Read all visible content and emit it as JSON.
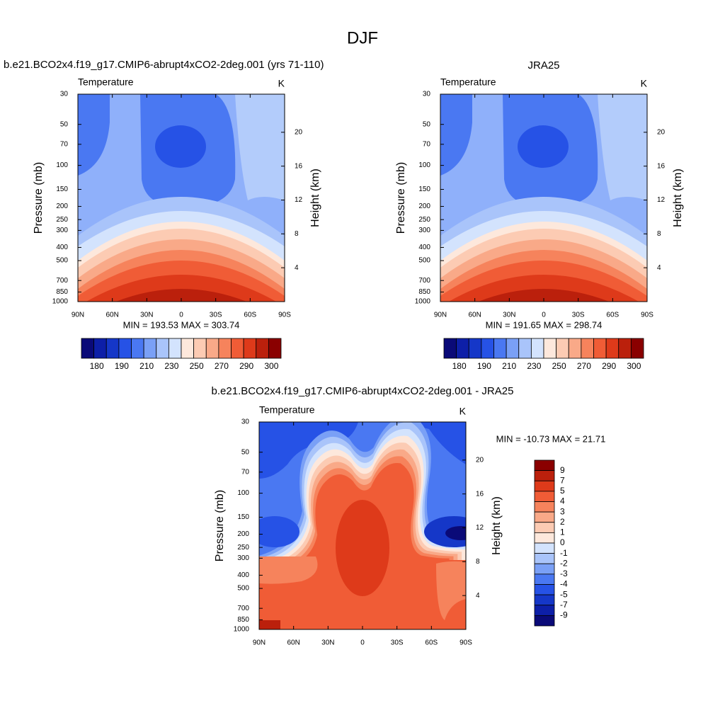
{
  "title": "DJF",
  "chart_data": [
    {
      "type": "contour",
      "title": "b.e21.BCO2x4.f19_g17.CMIP6-abrupt4xCO2-2deg.001 (yrs 71-110)",
      "left_label": "Temperature",
      "right_label": "K",
      "ylabel": "Pressure (mb)",
      "y2label": "Height (km)",
      "stats": "MIN = 193.53  MAX = 303.74",
      "xlim": [
        90,
        -90
      ],
      "xticks": [
        {
          "value": 90,
          "label": "90N"
        },
        {
          "value": 60,
          "label": "60N"
        },
        {
          "value": 30,
          "label": "30N"
        },
        0,
        {
          "value": -30,
          "label": "30S"
        },
        {
          "value": -60,
          "label": "60S"
        },
        {
          "value": -90,
          "label": "90S"
        }
      ],
      "ylim": [
        1000,
        30
      ],
      "ylog": true,
      "yticks": [
        30,
        50,
        70,
        100,
        150,
        200,
        250,
        300,
        400,
        500,
        700,
        850,
        1000
      ],
      "y2lim": [
        0,
        24.5
      ],
      "y2ticks": [
        4,
        8,
        12,
        16,
        20
      ],
      "colorbar": {
        "orientation": "horizontal",
        "colors": [
          "#0a0a78",
          "#0d1fa8",
          "#1537c8",
          "#2652e6",
          "#4a78f2",
          "#7aa0f6",
          "#a9c4fa",
          "#d3e3fd",
          "#fde8dc",
          "#fccbb3",
          "#f9a988",
          "#f6835c",
          "#f05c36",
          "#de3a1a",
          "#bb200c",
          "#8a0000"
        ],
        "ticks": [
          180,
          190,
          210,
          230,
          250,
          270,
          290,
          300
        ]
      }
    },
    {
      "type": "contour",
      "title": "JRA25",
      "left_label": "Temperature",
      "right_label": "K",
      "ylabel": "Pressure (mb)",
      "y2label": "Height (km)",
      "stats": "MIN = 191.65  MAX = 298.74",
      "xlim": [
        90,
        -90
      ],
      "xticks": [
        {
          "value": 90,
          "label": "90N"
        },
        {
          "value": 60,
          "label": "60N"
        },
        {
          "value": 30,
          "label": "30N"
        },
        0,
        {
          "value": -30,
          "label": "30S"
        },
        {
          "value": -60,
          "label": "60S"
        },
        {
          "value": -90,
          "label": "90S"
        }
      ],
      "ylim": [
        1000,
        30
      ],
      "ylog": true,
      "yticks": [
        30,
        50,
        70,
        100,
        150,
        200,
        250,
        300,
        400,
        500,
        700,
        850,
        1000
      ],
      "y2lim": [
        0,
        24.5
      ],
      "y2ticks": [
        4,
        8,
        12,
        16,
        20
      ],
      "colorbar": {
        "orientation": "horizontal",
        "colors": [
          "#0a0a78",
          "#0d1fa8",
          "#1537c8",
          "#2652e6",
          "#4a78f2",
          "#7aa0f6",
          "#a9c4fa",
          "#d3e3fd",
          "#fde8dc",
          "#fccbb3",
          "#f9a988",
          "#f6835c",
          "#f05c36",
          "#de3a1a",
          "#bb200c",
          "#8a0000"
        ],
        "ticks": [
          180,
          190,
          210,
          230,
          250,
          270,
          290,
          300
        ]
      }
    },
    {
      "type": "contour",
      "title": "b.e21.BCO2x4.f19_g17.CMIP6-abrupt4xCO2-2deg.001 - JRA25",
      "left_label": "Temperature",
      "right_label": "K",
      "ylabel": "Pressure (mb)",
      "y2label": "Height (km)",
      "stats": "MIN = -10.73  MAX =  21.71",
      "xlim": [
        90,
        -90
      ],
      "xticks": [
        {
          "value": 90,
          "label": "90N"
        },
        {
          "value": 60,
          "label": "60N"
        },
        {
          "value": 30,
          "label": "30N"
        },
        0,
        {
          "value": -30,
          "label": "30S"
        },
        {
          "value": -60,
          "label": "60S"
        },
        {
          "value": -90,
          "label": "90S"
        }
      ],
      "ylim": [
        1000,
        30
      ],
      "ylog": true,
      "yticks": [
        30,
        50,
        70,
        100,
        150,
        200,
        250,
        300,
        400,
        500,
        700,
        850,
        1000
      ],
      "y2lim": [
        0,
        24.5
      ],
      "y2ticks": [
        4,
        8,
        12,
        16,
        20
      ],
      "colorbar": {
        "orientation": "vertical",
        "colors": [
          "#8a0000",
          "#bb200c",
          "#de3a1a",
          "#f05c36",
          "#f6835c",
          "#f9a988",
          "#fccbb3",
          "#fde8dc",
          "#d3e3fd",
          "#a9c4fa",
          "#7aa0f6",
          "#4a78f2",
          "#2652e6",
          "#1537c8",
          "#0d1fa8",
          "#0a0a78"
        ],
        "ticks": [
          9,
          7,
          5,
          4,
          3,
          2,
          1,
          0,
          -1,
          -2,
          -3,
          -4,
          -5,
          -7,
          -9
        ]
      }
    }
  ]
}
